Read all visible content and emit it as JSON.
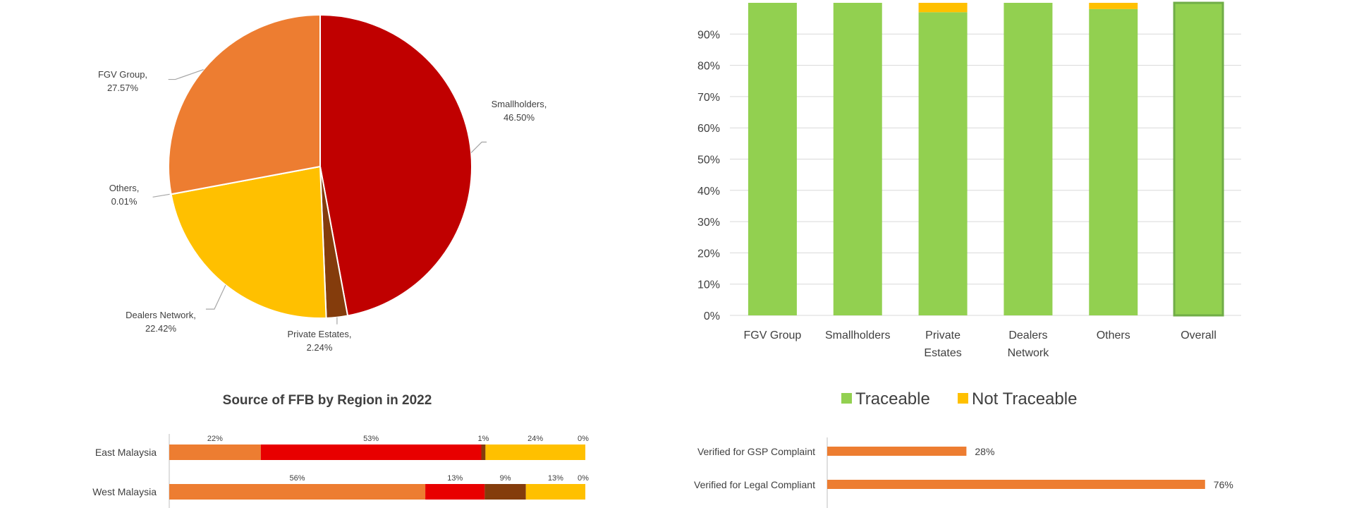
{
  "colors": {
    "orange": "#ED7D31",
    "red": "#C00000",
    "bright_red": "#E80000",
    "gold": "#FFC000",
    "brown": "#843C0C",
    "green": "#92D050",
    "green_border": "#70AD47",
    "grid": "#D9D9D9",
    "text": "#404040"
  },
  "chart_data": [
    {
      "id": "pie",
      "type": "pie",
      "title": "",
      "slices": [
        {
          "label": "Smallholders,",
          "value_label": "46.50%",
          "value": 46.5,
          "color": "#C00000"
        },
        {
          "label": "Private Estates,",
          "value_label": "2.24%",
          "value": 2.24,
          "color": "#843C0C"
        },
        {
          "label": "Dealers Network,",
          "value_label": "22.42%",
          "value": 22.42,
          "color": "#FFC000"
        },
        {
          "label": "Others,",
          "value_label": "0.01%",
          "value": 0.01,
          "color": "#A5A5A5"
        },
        {
          "label": "FGV Group,",
          "value_label": "27.57%",
          "value": 27.57,
          "color": "#ED7D31"
        }
      ]
    },
    {
      "id": "traceability",
      "type": "bar",
      "stacked": true,
      "title": "",
      "categories": [
        [
          "FGV Group"
        ],
        [
          "Smallholders"
        ],
        [
          "Private",
          "Estates"
        ],
        [
          "Dealers",
          "Network"
        ],
        [
          "Others"
        ],
        [
          "Overall"
        ]
      ],
      "yticks": [
        "0%",
        "10%",
        "20%",
        "30%",
        "40%",
        "50%",
        "60%",
        "70%",
        "80%",
        "90%"
      ],
      "ylim": [
        0,
        100
      ],
      "grid": true,
      "series": [
        {
          "name": "Traceable",
          "values": [
            100,
            100,
            97,
            100,
            98,
            100
          ],
          "color": "#92D050"
        },
        {
          "name": "Not Traceable",
          "values": [
            0,
            0,
            3,
            0,
            2,
            0
          ],
          "color": "#FFC000"
        }
      ],
      "legend": {
        "position": "bottom",
        "items": [
          {
            "name": "Traceable",
            "color": "#92D050"
          },
          {
            "name": "Not Traceable",
            "color": "#FFC000"
          }
        ]
      }
    },
    {
      "id": "region",
      "type": "bar",
      "orientation": "horizontal",
      "stacked": true,
      "title": "Source of FFB by Region in 2022",
      "categories": [
        "East Malaysia",
        "West Malaysia"
      ],
      "segments": [
        {
          "values": [
            22,
            56
          ],
          "labels": [
            "22%",
            "56%"
          ],
          "color": "#ED7D31"
        },
        {
          "values": [
            53,
            13
          ],
          "labels": [
            "53%",
            "13%"
          ],
          "color": "#E80000"
        },
        {
          "values": [
            1,
            9
          ],
          "labels": [
            "1%",
            "9%"
          ],
          "color": "#843C0C"
        },
        {
          "values": [
            24,
            13
          ],
          "labels": [
            "24%",
            "13%"
          ],
          "color": "#FFC000"
        },
        {
          "values": [
            0,
            0
          ],
          "labels": [
            "0%",
            "0%"
          ],
          "color": "#A5A5A5"
        }
      ]
    },
    {
      "id": "verification",
      "type": "bar",
      "orientation": "horizontal",
      "title": "",
      "categories": [
        "Verified for GSP Complaint",
        "Verified for Legal Compliant"
      ],
      "values": [
        28,
        76
      ],
      "value_labels": [
        "28%",
        "76%"
      ],
      "xlim": [
        0,
        100
      ],
      "color": "#ED7D31"
    }
  ]
}
